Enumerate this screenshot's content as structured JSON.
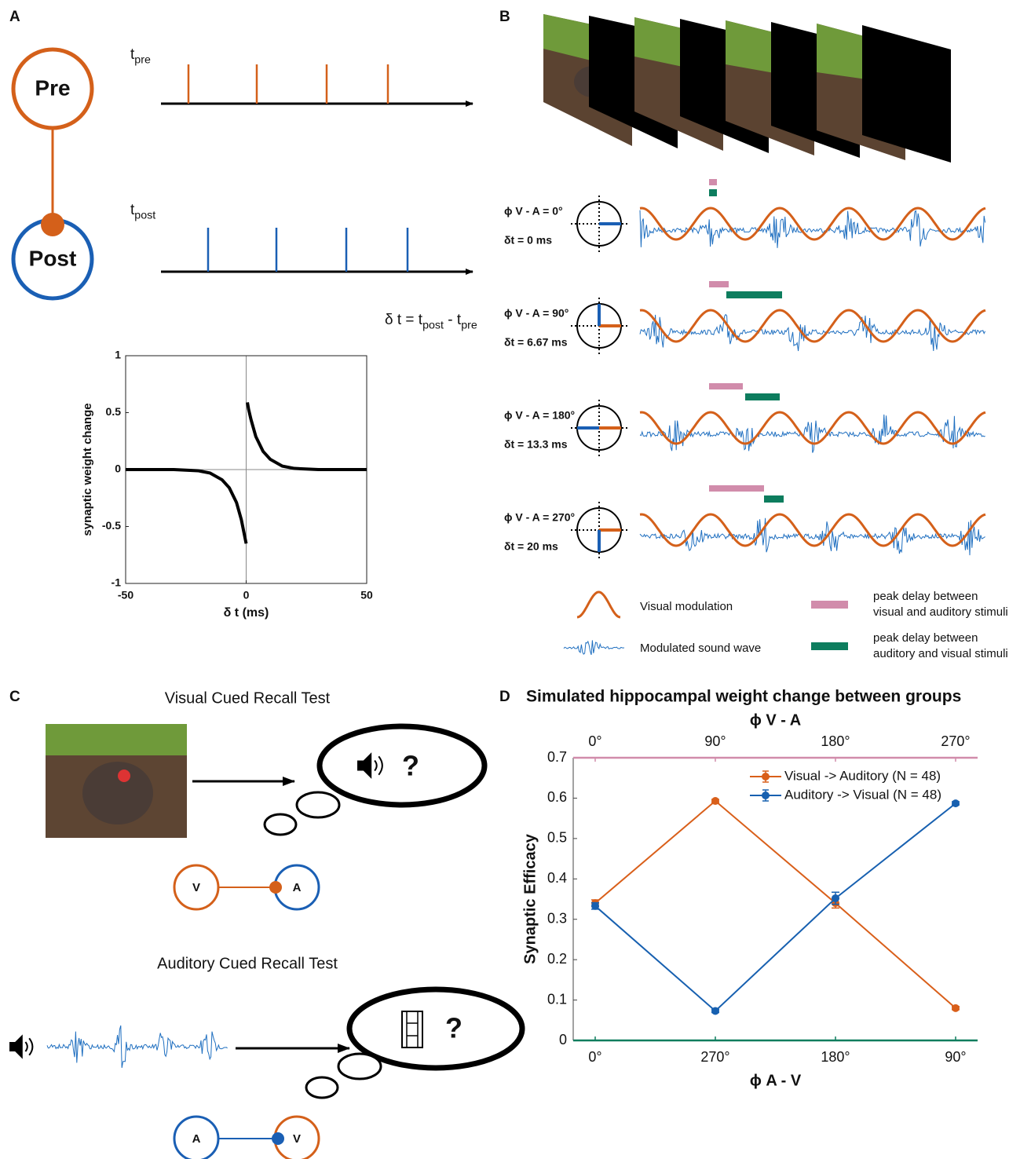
{
  "panels": {
    "A": {
      "letter": "A",
      "pre": "Pre",
      "post": "Post",
      "t_pre": [
        "t",
        "pre"
      ],
      "t_post": [
        "t",
        "post"
      ],
      "formula": [
        "δ t = t",
        "post",
        " - t",
        "pre"
      ]
    },
    "B": {
      "letter": "B",
      "rows": [
        {
          "phase": "ϕ V - A = 0°",
          "delay": "δt = 0 ms"
        },
        {
          "phase": "ϕ V - A = 90°",
          "delay": "δt = 6.67 ms"
        },
        {
          "phase": "ϕ V - A = 180°",
          "delay": "δt = 13.3 ms"
        },
        {
          "phase": "ϕ V - A = 270°",
          "delay": "δt = 20 ms"
        }
      ],
      "legend": {
        "modulation": "Visual modulation",
        "sound": "Modulated sound wave",
        "visual_auditory": [
          "peak delay between",
          "visual and auditory stimuli"
        ],
        "auditory_visual": [
          "peak delay between",
          "auditory and visual stimuli"
        ]
      }
    },
    "C": {
      "letter": "C",
      "visual_test": "Visual Cued Recall Test",
      "auditory_test": "Auditory Cued Recall Test",
      "question_marks": [
        "?",
        "?"
      ],
      "visual_nodes": [
        "V",
        "A"
      ],
      "auditory_nodes": [
        "A",
        "V"
      ]
    },
    "D": {
      "letter": "D"
    }
  },
  "chart_data": [
    {
      "type": "line",
      "xlabel": "δ t (ms)",
      "ylabel": "synaptic weight change",
      "color": "#000000",
      "x": [
        -50,
        -30,
        -20,
        -15,
        -10,
        -7,
        -4,
        -2,
        0,
        0.25,
        0.5,
        1,
        2,
        4,
        7,
        10,
        15,
        20,
        30,
        50
      ],
      "values": [
        0,
        0,
        -0.01,
        -0.03,
        -0.09,
        -0.16,
        -0.29,
        -0.44,
        -0.65,
        null,
        0.59,
        0.53,
        0.44,
        0.29,
        0.16,
        0.09,
        0.03,
        0.01,
        0,
        0
      ],
      "xlim": [
        -50,
        50
      ],
      "xticks": [
        -50,
        0,
        50
      ],
      "ylim": [
        -1,
        1
      ],
      "yticks": [
        -1,
        -0.5,
        0,
        0.5,
        1
      ],
      "zero_lines": true
    },
    {
      "type": "line",
      "title": "Simulated hippocampal weight change between groups",
      "xlabel": "ϕ A - V",
      "x2label": "ϕ V - A",
      "ylabel": "Synaptic Efficacy",
      "categories": [
        "0°",
        "270°",
        "180°",
        "90°"
      ],
      "top_categories": [
        "0°",
        "90°",
        "180°",
        "270°"
      ],
      "bottom_axis_color": "#0d7d5e",
      "top_axis_color": "#d18cab",
      "series": [
        {
          "name": "Visual -> Auditory (N = 48)",
          "color": "#d95f1a",
          "values": [
            0.34,
            0.593,
            0.34,
            0.08
          ],
          "errors": [
            0.008,
            0.004,
            0.012,
            0.004
          ]
        },
        {
          "name": "Auditory -> Visual (N = 48)",
          "color": "#1760b0",
          "values": [
            0.333,
            0.073,
            0.352,
            0.587
          ],
          "errors": [
            0.008,
            0.004,
            0.015,
            0.004
          ]
        }
      ],
      "ylim": [
        0,
        0.7
      ],
      "yticks": [
        0,
        0.1,
        0.2,
        0.3,
        0.4,
        0.5,
        0.6,
        0.7
      ],
      "legend": "upper right"
    }
  ]
}
